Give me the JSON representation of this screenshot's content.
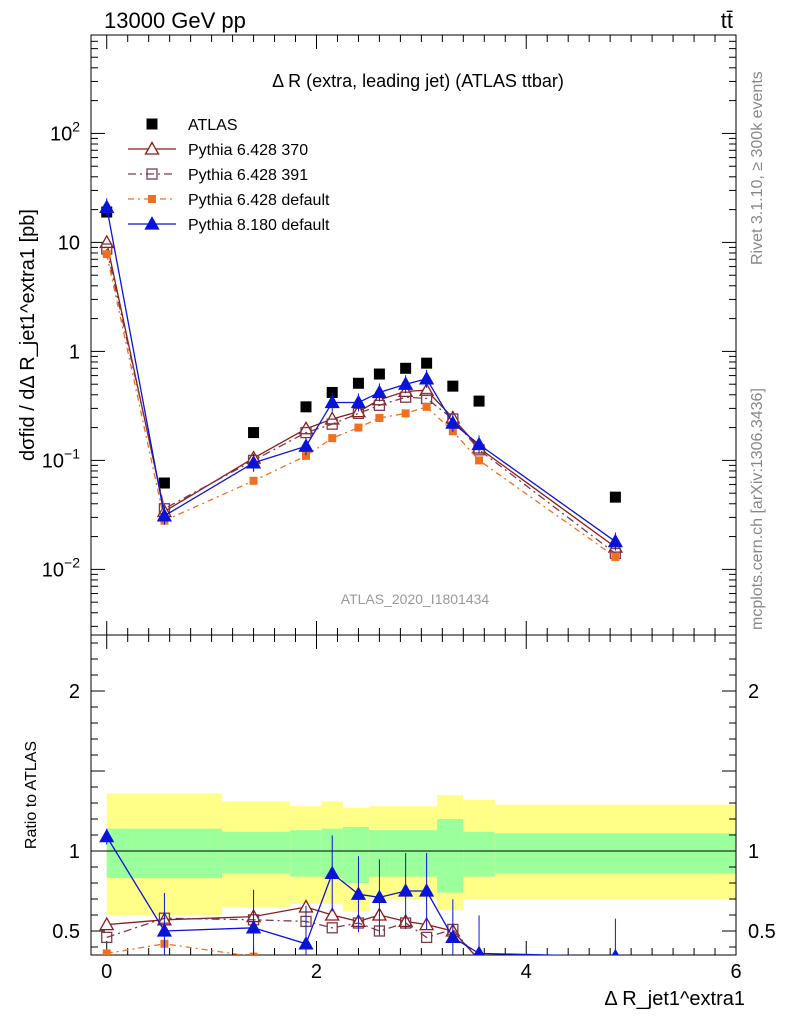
{
  "header": {
    "left": "13000 GeV pp",
    "right": "tt̄"
  },
  "side": {
    "rivet": "Rivet 3.1.10, ≥ 300k events",
    "mcplots": "mcplots.cern.ch [arXiv:1306.3436]"
  },
  "chart_data": [
    {
      "type": "scatter",
      "panel": "main",
      "title": "Δ R (extra, leading jet) (ATLAS ttbar)",
      "ylabel": "dσfid / dΔ R_jet1^extra1 [pb]",
      "watermark": "ATLAS_2020_I1801434",
      "yscale": "log",
      "ylim": [
        0.0025,
        800
      ],
      "xlim": [
        -0.15,
        6.0
      ],
      "ytick_labels": [
        "10^-2",
        "10^-1",
        "1",
        "10",
        "10^2"
      ],
      "legend_position": "top-left",
      "x": [
        0.0,
        0.55,
        1.4,
        1.9,
        2.15,
        2.4,
        2.6,
        2.85,
        3.05,
        3.3,
        3.55,
        4.85
      ],
      "series": [
        {
          "name": "ATLAS",
          "color": "#000000",
          "marker": "square-filled",
          "values": [
            19,
            0.062,
            0.18,
            0.31,
            0.42,
            0.51,
            0.62,
            0.7,
            0.78,
            0.48,
            0.35,
            0.046
          ]
        },
        {
          "name": "Pythia 6.428 370",
          "color": "#8b1a1a",
          "marker": "triangle-open",
          "values": [
            10,
            0.034,
            0.105,
            0.195,
            0.24,
            0.28,
            0.36,
            0.43,
            0.44,
            0.245,
            0.13,
            0.016
          ]
        },
        {
          "name": "Pythia 6.428 391",
          "color": "#7a3b4d",
          "marker": "square-open",
          "values": [
            8.7,
            0.036,
            0.1,
            0.18,
            0.215,
            0.27,
            0.32,
            0.38,
            0.37,
            0.24,
            0.125,
            0.014
          ]
        },
        {
          "name": "Pythia 6.428 default",
          "color": "#f07020",
          "marker": "square-filled-small",
          "values": [
            7.8,
            0.028,
            0.065,
            0.11,
            0.16,
            0.2,
            0.245,
            0.27,
            0.31,
            0.185,
            0.1,
            0.013
          ]
        },
        {
          "name": "Pythia 8.180 default",
          "color": "#0a14d8",
          "marker": "triangle-filled",
          "values": [
            21,
            0.031,
            0.095,
            0.135,
            0.34,
            0.34,
            0.42,
            0.5,
            0.56,
            0.22,
            0.14,
            0.018
          ]
        }
      ]
    },
    {
      "type": "line",
      "panel": "ratio",
      "ylabel": "Ratio to ATLAS",
      "xlabel": "Δ R_jet1^extra1",
      "ylim": [
        0.35,
        2.35
      ],
      "xlim": [
        -0.15,
        6.0
      ],
      "yticks": [
        0.5,
        1,
        2
      ],
      "xticks": [
        0,
        2,
        4,
        6
      ],
      "bands": {
        "edges": [
          0.0,
          0.25,
          1.1,
          1.75,
          2.05,
          2.25,
          2.5,
          2.7,
          3.15,
          3.4,
          3.7,
          6.0
        ],
        "inner_color": "#9bff9b",
        "outer_color": "#ffff88",
        "inner_low": [
          0.83,
          0.83,
          0.86,
          0.84,
          0.83,
          0.8,
          0.84,
          0.84,
          0.74,
          0.84,
          0.86
        ],
        "inner_high": [
          1.14,
          1.14,
          1.12,
          1.13,
          1.14,
          1.15,
          1.13,
          1.13,
          1.2,
          1.12,
          1.11
        ],
        "outer_low": [
          0.6,
          0.6,
          0.65,
          0.67,
          0.67,
          0.62,
          0.7,
          0.7,
          0.63,
          0.7,
          0.7
        ],
        "outer_high": [
          1.36,
          1.36,
          1.31,
          1.28,
          1.31,
          1.27,
          1.28,
          1.28,
          1.35,
          1.32,
          1.29
        ]
      },
      "x": [
        0.0,
        0.55,
        1.4,
        1.9,
        2.15,
        2.4,
        2.6,
        2.85,
        3.05,
        3.3,
        3.55,
        4.85
      ],
      "series": [
        {
          "name": "Pythia 6.428 370",
          "color": "#8b1a1a",
          "marker": "triangle-open",
          "values": [
            0.54,
            0.57,
            0.59,
            0.65,
            0.6,
            0.56,
            0.6,
            0.56,
            0.54,
            0.5,
            0.32,
            0.3
          ]
        },
        {
          "name": "Pythia 6.428 391",
          "color": "#7a3b4d",
          "marker": "square-open",
          "values": [
            0.46,
            0.58,
            0.57,
            0.56,
            0.52,
            0.55,
            0.5,
            0.55,
            0.46,
            0.51,
            0.32,
            0.3
          ]
        },
        {
          "name": "Pythia 6.428 default",
          "color": "#f07020",
          "marker": "square-filled-small",
          "values": [
            0.36,
            0.42,
            0.34,
            0.3,
            0.3,
            0.3,
            0.3,
            0.3,
            0.3,
            0.3,
            0.3,
            0.3
          ]
        },
        {
          "name": "Pythia 8.180 default",
          "color": "#0a14d8",
          "marker": "triangle-filled",
          "values": [
            1.09,
            0.5,
            0.52,
            0.42,
            0.86,
            0.73,
            0.71,
            0.75,
            0.75,
            0.46,
            0.36,
            0.34
          ]
        }
      ]
    }
  ]
}
